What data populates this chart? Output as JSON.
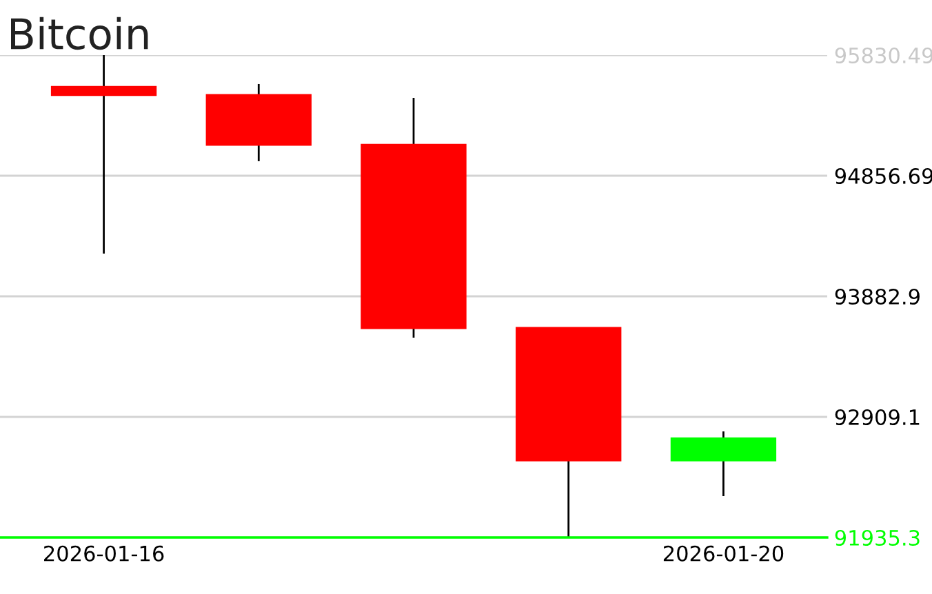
{
  "chart_data": {
    "type": "candlestick",
    "title": "Bitcoin",
    "categories": [
      "2026-01-16",
      null,
      null,
      null,
      "2026-01-20"
    ],
    "ohlc": [
      [
        95574,
        95830.49,
        94228,
        95508
      ],
      [
        95508,
        95597,
        94974,
        95107
      ],
      [
        95107,
        95485,
        93549,
        93627
      ],
      [
        93627,
        93627,
        91935.3,
        92558
      ],
      [
        92558,
        92792,
        92269,
        92736
      ]
    ],
    "colors": [
      "#ff0000",
      "#ff0000",
      "#ff0000",
      "#ff0000",
      "#00ff00"
    ],
    "ylim": [
      91935.3,
      95830.49
    ],
    "yticks": [
      91935.3,
      92909.1,
      93882.9,
      94856.69,
      95830.49
    ],
    "grid": "y"
  }
}
